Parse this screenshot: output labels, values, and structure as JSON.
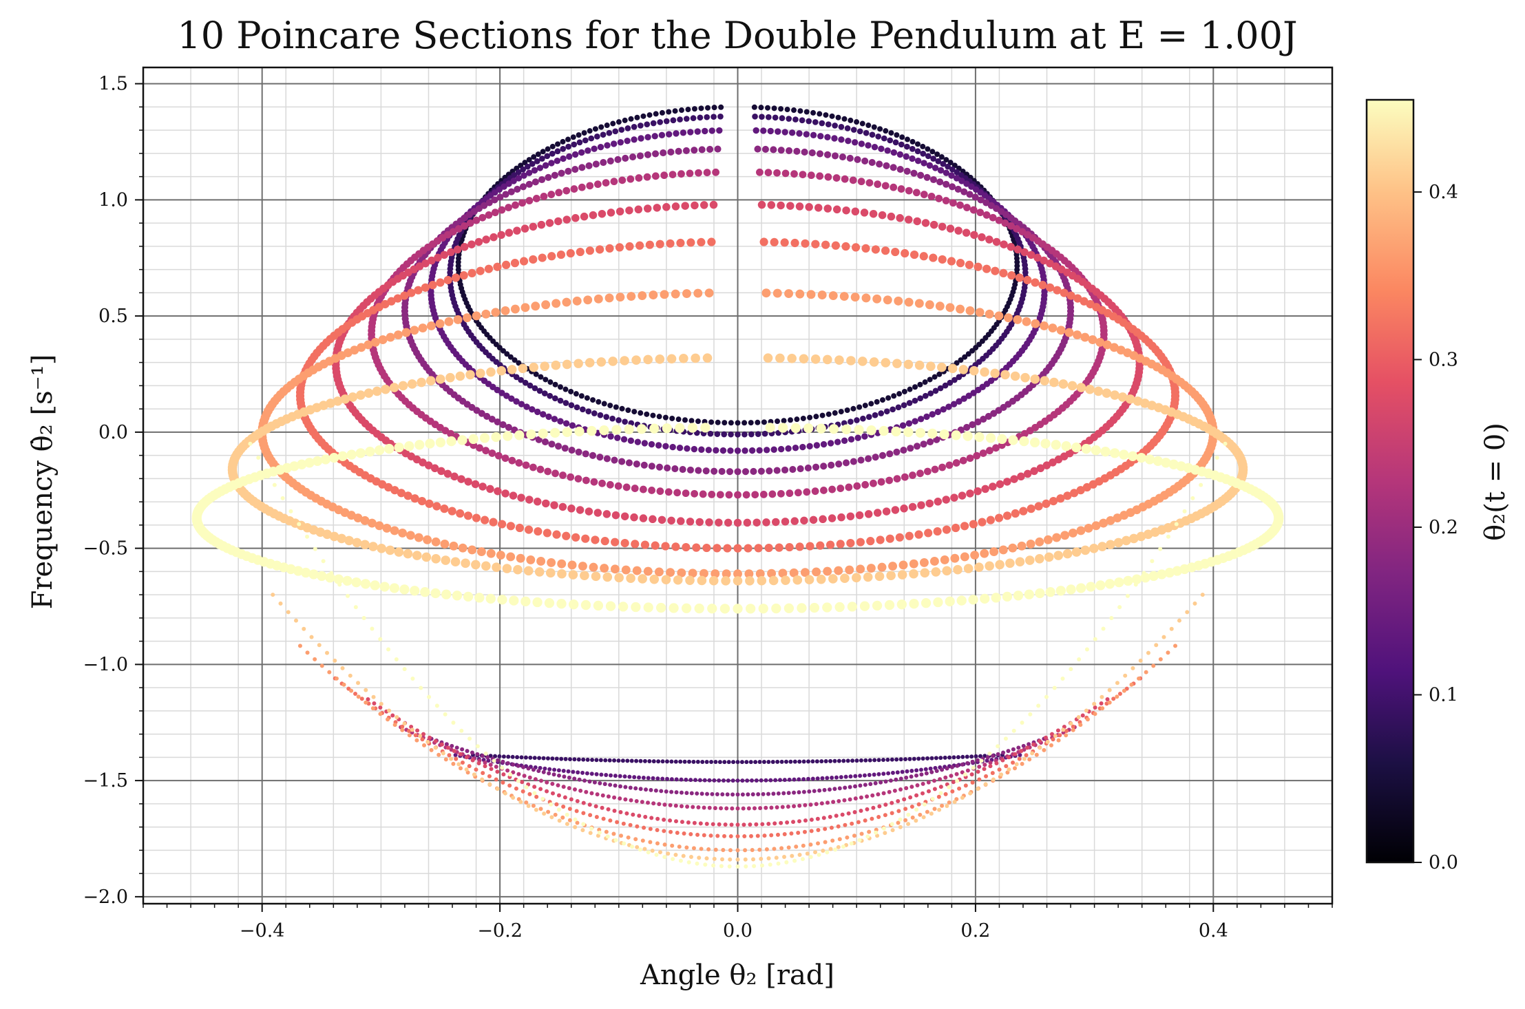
{
  "chart_data": {
    "type": "scatter",
    "title": "10 Poincare Sections for the Double Pendulum at E = 1.00J",
    "xlabel": "Angle θ₂ [rad]",
    "ylabel": "Frequency θ̇₂ [s⁻¹]",
    "xlim": [
      -0.5,
      0.5
    ],
    "ylim": [
      -2.03,
      1.57
    ],
    "x_ticks": [
      -0.4,
      -0.2,
      0.0,
      0.2,
      0.4
    ],
    "x_tick_labels": [
      "−0.4",
      "−0.2",
      "0.0",
      "0.2",
      "0.4"
    ],
    "y_ticks": [
      1.5,
      1.0,
      0.5,
      0.0,
      -0.5,
      -1.0,
      -1.5,
      -2.0
    ],
    "y_tick_labels": [
      "1.5",
      "1.0",
      "0.5",
      "0.0",
      "−0.5",
      "−1.0",
      "−1.5",
      "−2.0"
    ],
    "grid": "major and minor",
    "colorbar": {
      "label": "θ₂(t = 0)",
      "colormap": "magma",
      "range": [
        0.0,
        0.455
      ],
      "ticks": [
        0.0,
        0.1,
        0.2,
        0.3,
        0.4
      ],
      "tick_labels": [
        "0.0",
        "0.1",
        "0.2",
        "0.3",
        "0.4"
      ]
    },
    "sections": [
      {
        "theta0": 0.0455,
        "x_max": 0.235,
        "y_bottom": 0.04,
        "y_top": 1.4,
        "lower_y_min": null,
        "lower_y_end": null
      },
      {
        "theta0": 0.091,
        "x_max": 0.242,
        "y_bottom": -0.01,
        "y_top": 1.36,
        "lower_y_min": -1.42,
        "lower_y_end": -1.39
      },
      {
        "theta0": 0.1365,
        "x_max": 0.258,
        "y_bottom": -0.08,
        "y_top": 1.3,
        "lower_y_min": -1.5,
        "lower_y_end": -1.39
      },
      {
        "theta0": 0.182,
        "x_max": 0.28,
        "y_bottom": -0.17,
        "y_top": 1.22,
        "lower_y_min": -1.56,
        "lower_y_end": -1.32
      },
      {
        "theta0": 0.2275,
        "x_max": 0.308,
        "y_bottom": -0.27,
        "y_top": 1.12,
        "lower_y_min": -1.62,
        "lower_y_end": -1.27
      },
      {
        "theta0": 0.273,
        "x_max": 0.338,
        "y_bottom": -0.39,
        "y_top": 0.98,
        "lower_y_min": -1.69,
        "lower_y_end": -1.15
      },
      {
        "theta0": 0.3185,
        "x_max": 0.368,
        "y_bottom": -0.5,
        "y_top": 0.82,
        "lower_y_min": -1.74,
        "lower_y_end": -1.06
      },
      {
        "theta0": 0.364,
        "x_max": 0.4,
        "y_bottom": -0.61,
        "y_top": 0.6,
        "lower_y_min": -1.8,
        "lower_y_end": -0.92
      },
      {
        "theta0": 0.4095,
        "x_max": 0.425,
        "y_bottom": -0.64,
        "y_top": 0.32,
        "lower_y_min": -1.84,
        "lower_y_end": -0.7
      },
      {
        "theta0": 0.455,
        "x_max": 0.455,
        "y_bottom": -0.76,
        "y_top": 0.02,
        "lower_y_min": -1.87,
        "lower_y_end": -0.05
      }
    ]
  }
}
